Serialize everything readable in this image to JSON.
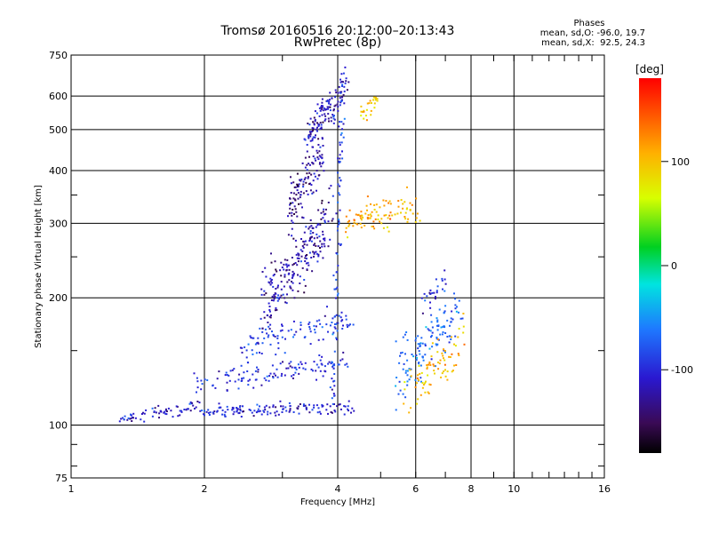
{
  "chart_data": {
    "type": "scatter",
    "title": "Tromsø 20160516 20:12:00–20:13:43",
    "subtitle": "RwPretec (8p)",
    "xlabel": "Frequency [MHz]",
    "ylabel": "Stationary phase Virtual Height [km]",
    "xscale": "log",
    "yscale": "log",
    "xlim": [
      1,
      16
    ],
    "ylim": [
      75,
      750
    ],
    "xticks": [
      "1",
      "2",
      "4",
      "6",
      "8",
      "10",
      "16"
    ],
    "xtick_values": [
      1,
      2,
      4,
      6,
      8,
      10,
      16
    ],
    "yticks": [
      "75",
      "100",
      "200",
      "300",
      "400",
      "500",
      "600",
      "750"
    ],
    "ytick_values": [
      75,
      100,
      200,
      300,
      400,
      500,
      600,
      750
    ],
    "grid": true,
    "colorbar": {
      "label": "[deg]",
      "ticks": [
        "100",
        "0",
        "-100"
      ],
      "tick_values": [
        100,
        0,
        -100
      ],
      "range": [
        -180,
        180
      ]
    },
    "stats": {
      "heading": "Phases",
      "line1": "mean, sd,O: -96.0, 19.7",
      "line2": "mean, sd,X:  92.5, 24.3"
    },
    "traces": [
      {
        "f_start": 1.3,
        "f_end": 1.95,
        "h_start": 104,
        "h_end": 110,
        "phase": -110,
        "n": 70,
        "scatter": 0.03
      },
      {
        "f_start": 1.95,
        "f_end": 4.4,
        "h_start": 108,
        "h_end": 110,
        "phase": -105,
        "n": 140,
        "scatter": 0.03
      },
      {
        "f_start": 1.9,
        "f_end": 4.2,
        "h_start": 124,
        "h_end": 142,
        "phase": -100,
        "n": 120,
        "scatter": 0.05
      },
      {
        "f_start": 2.4,
        "f_end": 4.3,
        "h_start": 150,
        "h_end": 180,
        "phase": -90,
        "n": 100,
        "scatter": 0.07
      },
      {
        "f_start": 2.7,
        "f_end": 3.9,
        "h_start": 190,
        "h_end": 310,
        "phase": -120,
        "n": 230,
        "scatter": 0.16
      },
      {
        "f_start": 3.1,
        "f_end": 3.7,
        "h_start": 320,
        "h_end": 440,
        "phase": -125,
        "n": 120,
        "scatter": 0.12
      },
      {
        "f_start": 3.4,
        "f_end": 4.2,
        "h_start": 480,
        "h_end": 640,
        "phase": -115,
        "n": 130,
        "scatter": 0.08
      },
      {
        "f_start": 3.9,
        "f_end": 4.1,
        "h_start": 110,
        "h_end": 650,
        "phase": -90,
        "n": 90,
        "scatter": 0.03
      },
      {
        "f_start": 4.1,
        "f_end": 6.1,
        "h_start": 300,
        "h_end": 330,
        "phase": 110,
        "n": 100,
        "scatter": 0.08
      },
      {
        "f_start": 4.5,
        "f_end": 4.9,
        "h_start": 540,
        "h_end": 590,
        "phase": 95,
        "n": 25,
        "scatter": 0.04
      },
      {
        "f_start": 5.4,
        "f_end": 7.6,
        "h_start": 130,
        "h_end": 190,
        "phase": -70,
        "n": 130,
        "scatter": 0.14
      },
      {
        "f_start": 5.6,
        "f_end": 7.8,
        "h_start": 110,
        "h_end": 160,
        "phase": 105,
        "n": 80,
        "scatter": 0.12
      },
      {
        "f_start": 6.2,
        "f_end": 7.0,
        "h_start": 190,
        "h_end": 220,
        "phase": -100,
        "n": 25,
        "scatter": 0.06
      }
    ]
  }
}
